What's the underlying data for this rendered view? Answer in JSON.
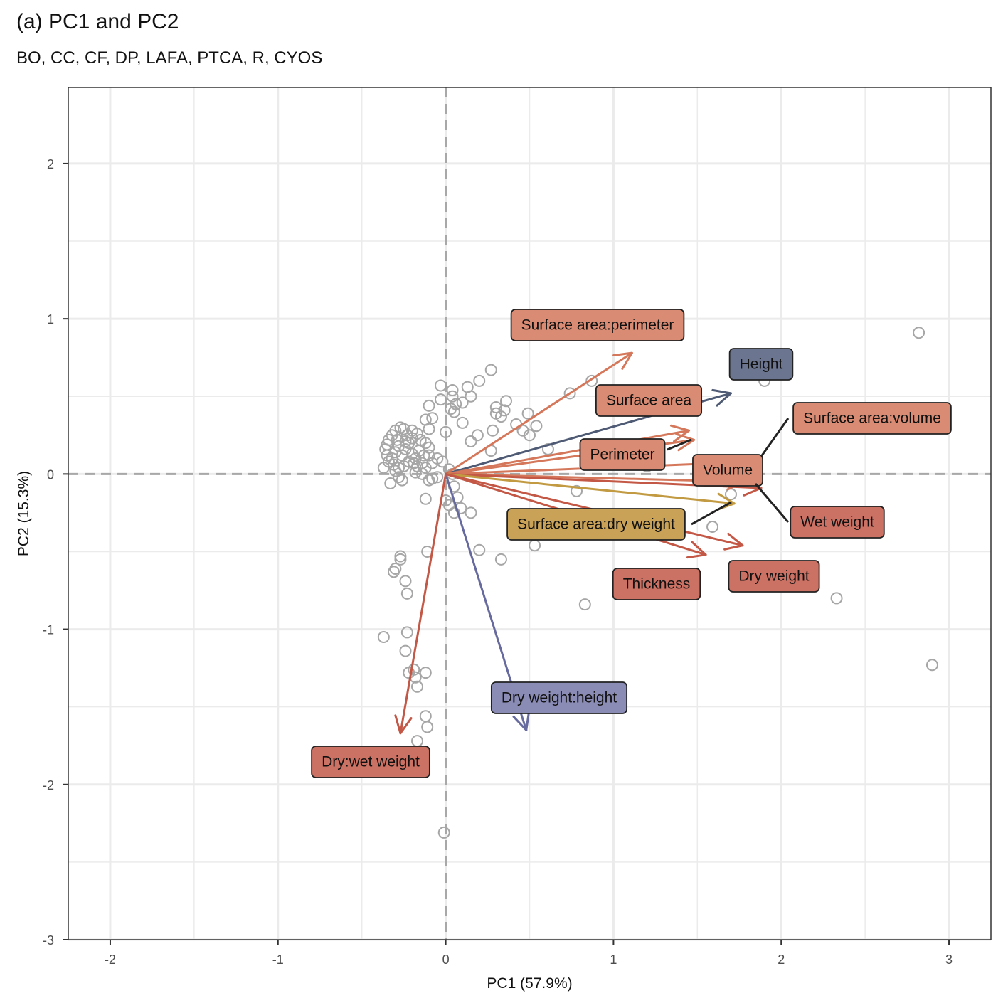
{
  "title": "(a) PC1 and PC2",
  "subtitle": "BO, CC, CF, DP, LAFA, PTCA, R, CYOS",
  "chart_data": {
    "type": "scatter",
    "subtype": "pca-biplot",
    "xlabel": "PC1 (57.9%)",
    "ylabel": "PC2 (15.3%)",
    "xlim": [
      -2.25,
      3.25
    ],
    "ylim": [
      -3.0,
      2.49
    ],
    "xticks": [
      -2,
      -1,
      0,
      1,
      2,
      3
    ],
    "yticks": [
      -3,
      -2,
      -1,
      0,
      1,
      2
    ],
    "grid": true,
    "reference_lines": "dashed at x=0 and y=0",
    "point_style": "hollow gray circles",
    "points": [
      [
        2.82,
        0.91
      ],
      [
        2.9,
        -1.23
      ],
      [
        2.33,
        -0.8
      ],
      [
        1.9,
        0.6
      ],
      [
        0.87,
        0.6
      ],
      [
        0.83,
        -0.84
      ],
      [
        1.59,
        -0.34
      ],
      [
        1.7,
        -0.13
      ],
      [
        1.2,
        0.05
      ],
      [
        0.78,
        -0.11
      ],
      [
        0.74,
        0.52
      ],
      [
        0.61,
        0.16
      ],
      [
        0.54,
        0.31
      ],
      [
        0.53,
        -0.46
      ],
      [
        0.5,
        0.25
      ],
      [
        0.49,
        0.39
      ],
      [
        0.46,
        0.28
      ],
      [
        0.42,
        0.32
      ],
      [
        0.36,
        0.47
      ],
      [
        0.35,
        0.41
      ],
      [
        0.33,
        0.37
      ],
      [
        0.3,
        0.43
      ],
      [
        0.3,
        0.39
      ],
      [
        0.33,
        -0.55
      ],
      [
        0.28,
        0.28
      ],
      [
        0.27,
        0.15
      ],
      [
        0.27,
        0.67
      ],
      [
        0.2,
        0.6
      ],
      [
        0.2,
        -0.49
      ],
      [
        0.19,
        0.25
      ],
      [
        0.15,
        0.21
      ],
      [
        0.15,
        0.5
      ],
      [
        0.13,
        0.56
      ],
      [
        0.1,
        0.46
      ],
      [
        0.1,
        0.33
      ],
      [
        0.06,
        0.45
      ],
      [
        0.05,
        0.4
      ],
      [
        0.04,
        0.5
      ],
      [
        0.04,
        0.54
      ],
      [
        0.03,
        0.42
      ],
      [
        0.02,
        0.03
      ],
      [
        0.0,
        0.27
      ],
      [
        -0.03,
        0.48
      ],
      [
        -0.03,
        0.57
      ],
      [
        -0.1,
        0.44
      ],
      [
        -0.08,
        0.36
      ],
      [
        -0.1,
        0.29
      ],
      [
        -0.12,
        0.35
      ],
      [
        0.04,
        0.0
      ],
      [
        0.05,
        -0.08
      ],
      [
        0.07,
        -0.15
      ],
      [
        0.09,
        -0.22
      ],
      [
        0.05,
        -0.25
      ],
      [
        0.15,
        -0.25
      ],
      [
        0.0,
        -0.17
      ],
      [
        0.02,
        -0.2
      ],
      [
        -0.12,
        -0.16
      ],
      [
        -0.11,
        -0.5
      ],
      [
        -0.1,
        -0.04
      ],
      [
        -0.08,
        -0.03
      ],
      [
        -0.05,
        -0.02
      ],
      [
        -0.02,
        0.08
      ],
      [
        -0.05,
        0.1
      ],
      [
        -0.08,
        0.07
      ],
      [
        -0.1,
        0.12
      ],
      [
        -0.1,
        0.17
      ],
      [
        -0.12,
        0.2
      ],
      [
        -0.15,
        0.22
      ],
      [
        -0.17,
        0.26
      ],
      [
        -0.2,
        0.28
      ],
      [
        -0.23,
        0.25
      ],
      [
        -0.25,
        0.29
      ],
      [
        -0.27,
        0.3
      ],
      [
        -0.3,
        0.28
      ],
      [
        -0.32,
        0.25
      ],
      [
        -0.34,
        0.22
      ],
      [
        -0.35,
        0.19
      ],
      [
        -0.36,
        0.16
      ],
      [
        -0.35,
        0.12
      ],
      [
        -0.32,
        0.1
      ],
      [
        -0.3,
        0.14
      ],
      [
        -0.28,
        0.18
      ],
      [
        -0.26,
        0.12
      ],
      [
        -0.24,
        0.16
      ],
      [
        -0.22,
        0.2
      ],
      [
        -0.2,
        0.13
      ],
      [
        -0.18,
        0.1
      ],
      [
        -0.16,
        0.15
      ],
      [
        -0.14,
        0.07
      ],
      [
        -0.12,
        0.04
      ],
      [
        -0.14,
        0.0
      ],
      [
        -0.17,
        0.05
      ],
      [
        -0.19,
        0.07
      ],
      [
        -0.22,
        0.08
      ],
      [
        -0.25,
        0.05
      ],
      [
        -0.28,
        0.04
      ],
      [
        -0.31,
        0.06
      ],
      [
        -0.34,
        0.08
      ],
      [
        -0.37,
        0.04
      ],
      [
        -0.33,
        -0.06
      ],
      [
        -0.28,
        -0.02
      ],
      [
        -0.26,
        -0.04
      ],
      [
        -0.3,
        0.02
      ],
      [
        -0.18,
        0.01
      ],
      [
        -0.13,
        0.12
      ],
      [
        -0.2,
        0.23
      ],
      [
        -0.24,
        0.21
      ],
      [
        -0.29,
        0.22
      ],
      [
        -0.27,
        -0.53
      ],
      [
        -0.27,
        -0.55
      ],
      [
        -0.3,
        -0.61
      ],
      [
        -0.31,
        -0.63
      ],
      [
        -0.24,
        -0.69
      ],
      [
        -0.23,
        -0.77
      ],
      [
        -0.37,
        -1.05
      ],
      [
        -0.23,
        -1.02
      ],
      [
        -0.24,
        -1.14
      ],
      [
        -0.22,
        -1.28
      ],
      [
        -0.19,
        -1.26
      ],
      [
        -0.18,
        -1.31
      ],
      [
        -0.17,
        -1.37
      ],
      [
        -0.12,
        -1.28
      ],
      [
        -0.12,
        -1.56
      ],
      [
        -0.11,
        -1.63
      ],
      [
        -0.17,
        -1.72
      ],
      [
        -0.01,
        -2.31
      ]
    ],
    "loadings": [
      {
        "name": "Surface area:perimeter",
        "pc1": 1.11,
        "pc2": 0.78,
        "color": "#d4775a",
        "label_fill": "#d98c73"
      },
      {
        "name": "Height",
        "pc1": 1.7,
        "pc2": 0.52,
        "color": "#4f5b74",
        "label_fill": "#6b7590"
      },
      {
        "name": "Surface area",
        "pc1": 1.45,
        "pc2": 0.28,
        "color": "#d4775a",
        "label_fill": "#d98c73"
      },
      {
        "name": "Perimeter",
        "pc1": 1.48,
        "pc2": 0.22,
        "color": "#d4775a",
        "label_fill": "#d98c73"
      },
      {
        "name": "Surface area:volume",
        "pc1": 1.62,
        "pc2": 0.07,
        "color": "#d4775a",
        "label_fill": "#d98c73"
      },
      {
        "name": "Volume",
        "pc1": 1.78,
        "pc2": -0.05,
        "color": "#d4775a",
        "label_fill": "#d98c73"
      },
      {
        "name": "Wet weight",
        "pc1": 1.88,
        "pc2": -0.09,
        "color": "#c45846",
        "label_fill": "#cc7264"
      },
      {
        "name": "Surface area:dry weight",
        "pc1": 1.72,
        "pc2": -0.19,
        "color": "#c29a42",
        "label_fill": "#c9a257"
      },
      {
        "name": "Dry weight",
        "pc1": 1.77,
        "pc2": -0.46,
        "color": "#c45846",
        "label_fill": "#cc7264"
      },
      {
        "name": "Thickness",
        "pc1": 1.55,
        "pc2": -0.52,
        "color": "#c45846",
        "label_fill": "#cc7264"
      },
      {
        "name": "Dry weight:height",
        "pc1": 0.48,
        "pc2": -1.65,
        "color": "#666a9f",
        "label_fill": "#8a8cb6"
      },
      {
        "name": "Dry:wet weight",
        "pc1": -0.27,
        "pc2": -1.67,
        "color": "#c45846",
        "label_fill": "#cc7264"
      }
    ]
  }
}
